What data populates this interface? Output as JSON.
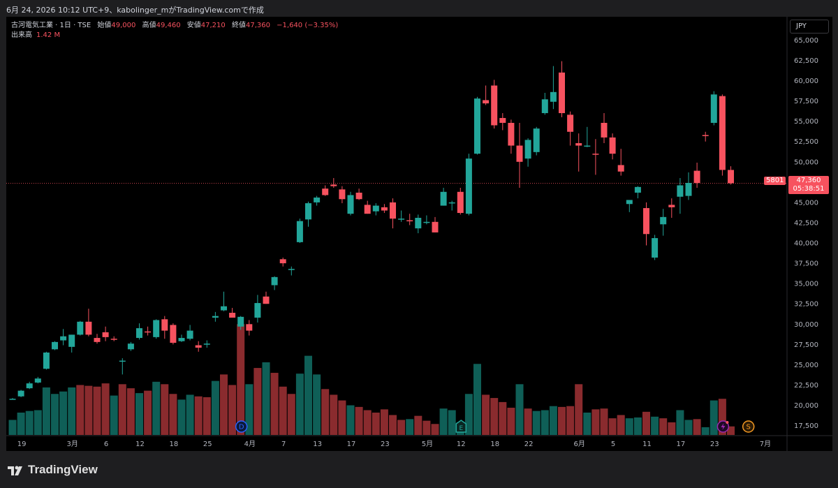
{
  "topbar": {
    "text": "6月 24, 2026 10:12 UTC+9、kabolinger_mがTradingView.comで作成"
  },
  "legend": {
    "symbol": "古河電気工業 · 1日 · TSE",
    "open_label": "始値",
    "open": "49,000",
    "high_label": "高値",
    "high": "49,460",
    "low_label": "安値",
    "low": "47,210",
    "close_label": "終値",
    "close": "47,360",
    "change": "−1,640 (−3.35%)",
    "volume_label": "出来高",
    "volume": "1.42 M"
  },
  "currency": "JPY",
  "price_badge": {
    "symbol_code": "5801",
    "price": "47,360",
    "countdown": "05:38:51"
  },
  "brand": "TradingView",
  "colors": {
    "up": "#22a69a",
    "down": "#f7525f",
    "up_vol": "#0f5f57",
    "down_vol": "#8a2b2e",
    "event_d": "#2962ff",
    "event_e": "#22a69a",
    "event_s": "#f59a23",
    "event_split": "#9c27b0"
  },
  "chart_data": {
    "type": "candlestick",
    "y_ticks": [
      17500,
      20000,
      22500,
      25000,
      27500,
      30000,
      32500,
      35000,
      37500,
      40000,
      42500,
      45000,
      47500,
      50000,
      52500,
      55000,
      57500,
      60000,
      62500,
      65000
    ],
    "y_tick_labels": [
      "17,500",
      "20,000",
      "22,500",
      "25,000",
      "27,500",
      "30,000",
      "32,500",
      "35,000",
      "37,500",
      "40,000",
      "42,500",
      "45,000",
      "47,500",
      "50,000",
      "52,500",
      "55,000",
      "57,500",
      "60,000",
      "62,500",
      "65,000"
    ],
    "x_tick_labels": [
      {
        "i": 1,
        "label": "19"
      },
      {
        "i": 7,
        "label": "3月"
      },
      {
        "i": 11,
        "label": "6"
      },
      {
        "i": 15,
        "label": "12"
      },
      {
        "i": 19,
        "label": "18"
      },
      {
        "i": 23,
        "label": "25"
      },
      {
        "i": 28,
        "label": "4月"
      },
      {
        "i": 32,
        "label": "7"
      },
      {
        "i": 36,
        "label": "13"
      },
      {
        "i": 40,
        "label": "17"
      },
      {
        "i": 44,
        "label": "23"
      },
      {
        "i": 49,
        "label": "5月"
      },
      {
        "i": 53,
        "label": "12"
      },
      {
        "i": 57,
        "label": "18"
      },
      {
        "i": 61,
        "label": "22"
      },
      {
        "i": 67,
        "label": "6月"
      },
      {
        "i": 71,
        "label": "5"
      },
      {
        "i": 75,
        "label": "11"
      },
      {
        "i": 79,
        "label": "17"
      },
      {
        "i": 83,
        "label": "23"
      },
      {
        "i": 89,
        "label": "7月"
      }
    ],
    "candles": [
      [
        20800,
        20900,
        20700,
        20800
      ],
      [
        21100,
        21900,
        21000,
        21800
      ],
      [
        22100,
        22900,
        22000,
        22700
      ],
      [
        22800,
        23500,
        22700,
        23300
      ],
      [
        24500,
        26600,
        24400,
        26500
      ],
      [
        26900,
        27900,
        26800,
        27800
      ],
      [
        28000,
        29400,
        27400,
        28500
      ],
      [
        27200,
        28700,
        26500,
        28700
      ],
      [
        28700,
        30400,
        28600,
        30300
      ],
      [
        30300,
        31900,
        28500,
        28700
      ],
      [
        28300,
        28800,
        27600,
        27800
      ],
      [
        29000,
        29700,
        27900,
        28400
      ],
      [
        28200,
        28500,
        27900,
        28100
      ],
      [
        25500,
        25800,
        23800,
        25500
      ],
      [
        26900,
        27800,
        26700,
        27600
      ],
      [
        28300,
        30100,
        28100,
        29500
      ],
      [
        29100,
        29700,
        28600,
        29000
      ],
      [
        28400,
        30600,
        28200,
        30500
      ],
      [
        30600,
        31000,
        28200,
        29200
      ],
      [
        29900,
        30100,
        27500,
        27700
      ],
      [
        27900,
        28700,
        27800,
        28300
      ],
      [
        28200,
        29900,
        28000,
        29200
      ],
      [
        27400,
        27900,
        26600,
        27100
      ],
      [
        27600,
        28000,
        27100,
        27600
      ],
      [
        30800,
        31500,
        30300,
        31000
      ],
      [
        31700,
        34000,
        31600,
        32200
      ],
      [
        31400,
        32000,
        31000,
        30800
      ],
      [
        29700,
        31000,
        29300,
        30900
      ],
      [
        30000,
        30500,
        28600,
        29200
      ],
      [
        30800,
        33600,
        30200,
        32600
      ],
      [
        33400,
        34000,
        32500,
        32500
      ],
      [
        34800,
        35900,
        34200,
        35800
      ],
      [
        38000,
        38200,
        37100,
        37500
      ],
      [
        36800,
        37100,
        36000,
        36800
      ],
      [
        40100,
        43000,
        40000,
        42700
      ],
      [
        42900,
        45100,
        42000,
        44900
      ],
      [
        45000,
        45800,
        44600,
        45600
      ],
      [
        46700,
        47100,
        45800,
        45900
      ],
      [
        47200,
        48000,
        46800,
        47000
      ],
      [
        46600,
        47000,
        44900,
        45400
      ],
      [
        43600,
        46300,
        43400,
        45900
      ],
      [
        46200,
        46700,
        45300,
        45400
      ],
      [
        44700,
        45200,
        43600,
        43600
      ],
      [
        43900,
        44900,
        43400,
        44600
      ],
      [
        44400,
        44800,
        43700,
        44000
      ],
      [
        45000,
        45500,
        41800,
        43000
      ],
      [
        43000,
        44000,
        42600,
        43000
      ],
      [
        42800,
        43600,
        42200,
        42700
      ],
      [
        41800,
        43500,
        41200,
        43100
      ],
      [
        42600,
        43400,
        42300,
        42600
      ],
      [
        42600,
        43200,
        41300,
        41300
      ],
      [
        44600,
        46800,
        44600,
        46300
      ],
      [
        45000,
        45200,
        44000,
        45000
      ],
      [
        46300,
        46800,
        43500,
        43700
      ],
      [
        43600,
        51000,
        43400,
        50400
      ],
      [
        51000,
        58000,
        50900,
        57800
      ],
      [
        57600,
        59400,
        57000,
        57200
      ],
      [
        59400,
        60100,
        54100,
        54500
      ],
      [
        55400,
        56000,
        53900,
        54800
      ],
      [
        54800,
        55200,
        51000,
        52000
      ],
      [
        52000,
        54800,
        46800,
        50000
      ],
      [
        50400,
        52900,
        49400,
        52700
      ],
      [
        51200,
        54300,
        50800,
        54100
      ],
      [
        56000,
        58500,
        55800,
        57700
      ],
      [
        57400,
        61800,
        56500,
        58600
      ],
      [
        61000,
        62400,
        55500,
        56000
      ],
      [
        55800,
        56200,
        52000,
        53700
      ],
      [
        52300,
        53500,
        48800,
        52000
      ],
      [
        52000,
        54300,
        51800,
        52000
      ],
      [
        51000,
        52800,
        48400,
        50900
      ],
      [
        54800,
        56000,
        52300,
        53000
      ],
      [
        53000,
        53500,
        50300,
        51000
      ],
      [
        49600,
        51600,
        48300,
        48800
      ],
      [
        44800,
        45200,
        43800,
        45300
      ],
      [
        46200,
        47000,
        45500,
        46900
      ],
      [
        44300,
        45000,
        39700,
        41100
      ],
      [
        38200,
        41000,
        37900,
        40600
      ],
      [
        42300,
        44200,
        40900,
        43200
      ],
      [
        44700,
        45500,
        43100,
        44400
      ],
      [
        45700,
        48000,
        43600,
        47100
      ],
      [
        45800,
        48700,
        45300,
        47400
      ],
      [
        48900,
        49900,
        46800,
        47400
      ],
      [
        53300,
        53700,
        52500,
        53200
      ],
      [
        54800,
        58700,
        54500,
        58300
      ],
      [
        58100,
        58300,
        48300,
        49000
      ],
      [
        49000,
        49460,
        47210,
        47360
      ]
    ],
    "volumes": [
      [
        18200,
        1
      ],
      [
        19100,
        1
      ],
      [
        19300,
        1
      ],
      [
        19400,
        1
      ],
      [
        22200,
        1
      ],
      [
        21400,
        1
      ],
      [
        21700,
        1
      ],
      [
        22200,
        1
      ],
      [
        22500,
        0
      ],
      [
        22400,
        0
      ],
      [
        22300,
        0
      ],
      [
        22700,
        0
      ],
      [
        21200,
        1
      ],
      [
        22600,
        0
      ],
      [
        22100,
        0
      ],
      [
        21500,
        1
      ],
      [
        21800,
        0
      ],
      [
        22900,
        1
      ],
      [
        22600,
        0
      ],
      [
        21400,
        0
      ],
      [
        20700,
        1
      ],
      [
        21300,
        1
      ],
      [
        21100,
        0
      ],
      [
        21000,
        0
      ],
      [
        23000,
        1
      ],
      [
        23800,
        0
      ],
      [
        22500,
        0
      ],
      [
        30000,
        0
      ],
      [
        22600,
        1
      ],
      [
        24600,
        0
      ],
      [
        25300,
        1
      ],
      [
        24000,
        0
      ],
      [
        22300,
        0
      ],
      [
        21400,
        0
      ],
      [
        23900,
        1
      ],
      [
        26100,
        1
      ],
      [
        23800,
        1
      ],
      [
        22000,
        0
      ],
      [
        21300,
        0
      ],
      [
        20600,
        0
      ],
      [
        20000,
        1
      ],
      [
        19800,
        0
      ],
      [
        19400,
        0
      ],
      [
        19100,
        0
      ],
      [
        19500,
        0
      ],
      [
        18800,
        0
      ],
      [
        18200,
        0
      ],
      [
        18300,
        1
      ],
      [
        18700,
        0
      ],
      [
        18100,
        0
      ],
      [
        17700,
        0
      ],
      [
        19600,
        1
      ],
      [
        19400,
        1
      ],
      [
        17900,
        1
      ],
      [
        21400,
        1
      ],
      [
        25100,
        1
      ],
      [
        21300,
        0
      ],
      [
        20900,
        0
      ],
      [
        20400,
        0
      ],
      [
        19700,
        0
      ],
      [
        22600,
        1
      ],
      [
        19600,
        0
      ],
      [
        19300,
        1
      ],
      [
        19400,
        1
      ],
      [
        19900,
        1
      ],
      [
        19800,
        0
      ],
      [
        19900,
        0
      ],
      [
        22600,
        0
      ],
      [
        19100,
        1
      ],
      [
        19500,
        0
      ],
      [
        19600,
        0
      ],
      [
        18400,
        0
      ],
      [
        18800,
        0
      ],
      [
        18400,
        1
      ],
      [
        18500,
        1
      ],
      [
        19200,
        0
      ],
      [
        18600,
        1
      ],
      [
        18400,
        0
      ],
      [
        17900,
        0
      ],
      [
        19400,
        1
      ],
      [
        18200,
        1
      ],
      [
        18300,
        0
      ],
      [
        17300,
        1
      ],
      [
        20600,
        1
      ],
      [
        20800,
        0
      ],
      [
        17400,
        0
      ]
    ],
    "events": [
      {
        "i": 27,
        "label": "D"
      },
      {
        "i": 53,
        "label": "E"
      },
      {
        "i": 84,
        "label": "split"
      },
      {
        "i": 87,
        "label": "S"
      }
    ]
  }
}
